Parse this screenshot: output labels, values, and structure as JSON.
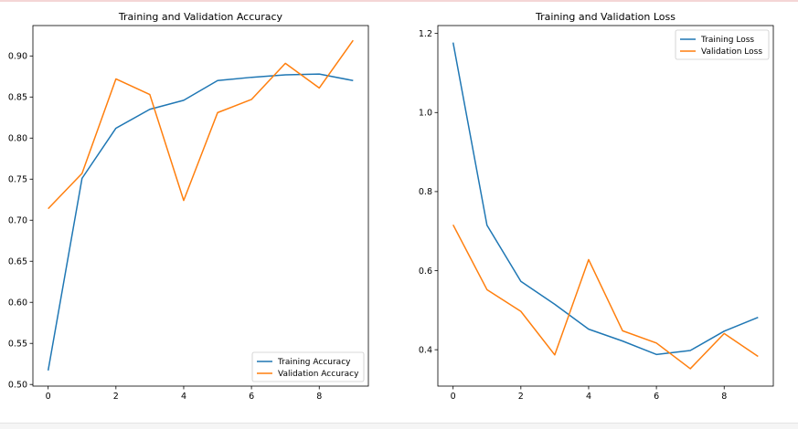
{
  "colors": {
    "training": "#1f77b4",
    "validation": "#ff7f0e"
  },
  "chart_data": [
    {
      "type": "line",
      "title": "Training and Validation Accuracy",
      "xlabel": "",
      "ylabel": "",
      "x": [
        0,
        1,
        2,
        3,
        4,
        5,
        6,
        7,
        8,
        9
      ],
      "xticks": [
        "0",
        "2",
        "4",
        "6",
        "8"
      ],
      "xtick_values": [
        0,
        2,
        4,
        6,
        8
      ],
      "yticks": [
        "0.50",
        "0.55",
        "0.60",
        "0.65",
        "0.70",
        "0.75",
        "0.80",
        "0.85",
        "0.90"
      ],
      "ytick_values": [
        0.5,
        0.55,
        0.6,
        0.65,
        0.7,
        0.75,
        0.8,
        0.85,
        0.9
      ],
      "xlim": [
        -0.45,
        9.45
      ],
      "ylim": [
        0.498,
        0.937
      ],
      "legend_position": "lower-right",
      "series": [
        {
          "name": "Training Accuracy",
          "color_key": "training",
          "values": [
            0.517,
            0.751,
            0.812,
            0.835,
            0.846,
            0.87,
            0.874,
            0.877,
            0.878,
            0.87
          ]
        },
        {
          "name": "Validation Accuracy",
          "color_key": "validation",
          "values": [
            0.714,
            0.757,
            0.872,
            0.853,
            0.724,
            0.831,
            0.847,
            0.891,
            0.861,
            0.919
          ]
        }
      ]
    },
    {
      "type": "line",
      "title": "Training and Validation Loss",
      "xlabel": "",
      "ylabel": "",
      "x": [
        0,
        1,
        2,
        3,
        4,
        5,
        6,
        7,
        8,
        9
      ],
      "xticks": [
        "0",
        "2",
        "4",
        "6",
        "8"
      ],
      "xtick_values": [
        0,
        2,
        4,
        6,
        8
      ],
      "yticks": [
        "0.4",
        "0.6",
        "0.8",
        "1.0",
        "1.2"
      ],
      "ytick_values": [
        0.4,
        0.6,
        0.8,
        1.0,
        1.2
      ],
      "xlim": [
        -0.45,
        9.45
      ],
      "ylim": [
        0.308,
        1.22
      ],
      "legend_position": "upper-right",
      "series": [
        {
          "name": "Training Loss",
          "color_key": "training",
          "values": [
            1.177,
            0.715,
            0.573,
            0.515,
            0.452,
            0.422,
            0.388,
            0.398,
            0.447,
            0.482
          ]
        },
        {
          "name": "Validation Loss",
          "color_key": "validation",
          "values": [
            0.716,
            0.552,
            0.497,
            0.387,
            0.628,
            0.448,
            0.417,
            0.352,
            0.441,
            0.383
          ]
        }
      ]
    }
  ]
}
